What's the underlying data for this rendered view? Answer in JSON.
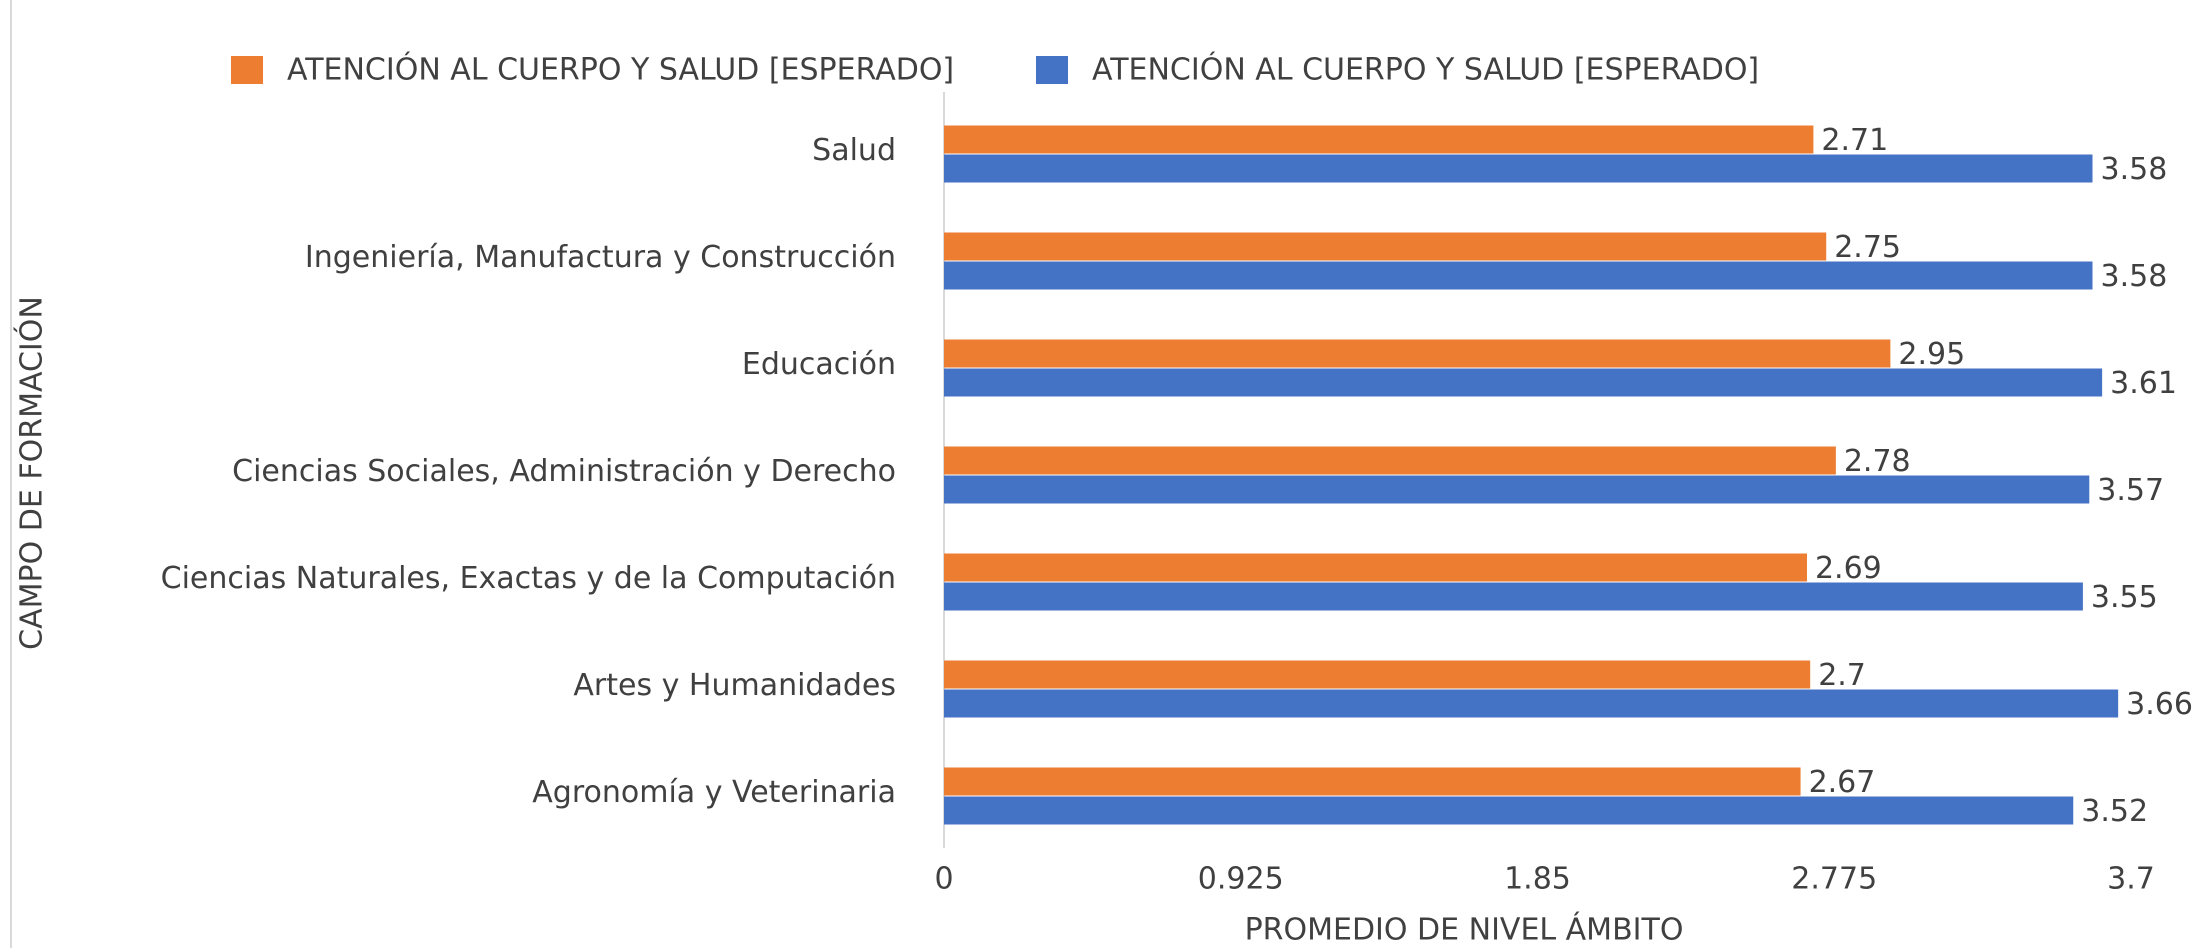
{
  "chart_data": {
    "type": "hbar",
    "x_label": "PROMEDIO DE NIVEL ÁMBITO",
    "y_label": "CAMPO DE FORMACIÓN",
    "categories": [
      "Salud",
      "Ingeniería, Manufactura y Construcción",
      "Educación",
      "Ciencias Sociales, Administración y Derecho",
      "Ciencias Naturales, Exactas y de la Computación",
      "Artes y Humanidades",
      "Agronomía y Veterinaria"
    ],
    "series": [
      {
        "name": "ATENCIÓN AL CUERPO Y SALUD [ESPERADO]",
        "color": "#ed7d31",
        "values": [
          2.71,
          2.75,
          2.95,
          2.78,
          2.69,
          2.7,
          2.67
        ]
      },
      {
        "name": "ATENCIÓN AL CUERPO Y SALUD [ESPERADO]",
        "color": "#4472c4",
        "values": [
          3.58,
          3.58,
          3.61,
          3.57,
          3.55,
          3.66,
          3.52
        ]
      }
    ],
    "xlim": [
      0,
      3.7
    ],
    "xticks": [
      0,
      0.925,
      1.85,
      2.775,
      3.7
    ],
    "legend": "top"
  }
}
